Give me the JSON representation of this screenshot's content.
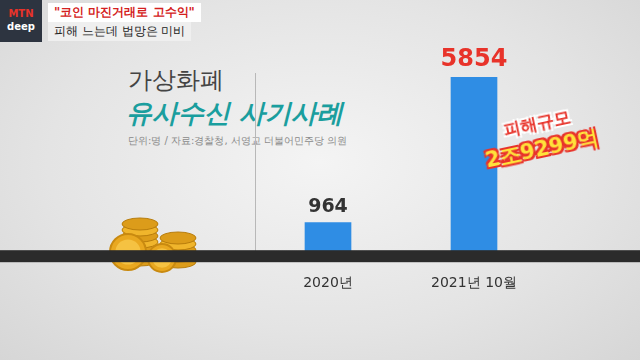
{
  "header": {
    "logo": [
      "MTN",
      "deep"
    ],
    "headline": "\"코인 마진거래로 고수익\"",
    "subheadline": "피해 느는데 법망은 미비"
  },
  "chart_data": {
    "type": "bar",
    "title": "가상화폐",
    "subtitle": "유사수신 사기사례",
    "note": "단위:명 / 자료:경찰청, 서영교 더불어민주당 의원",
    "categories": [
      "2020년",
      "2021년 10월"
    ],
    "values": [
      964,
      5854
    ],
    "color": "#2f8de4",
    "ylim": [
      0,
      6000
    ],
    "grid": false,
    "data_labels": true,
    "tick_labels": "x",
    "annotations": [
      "피해규모",
      "2조9299억"
    ]
  }
}
